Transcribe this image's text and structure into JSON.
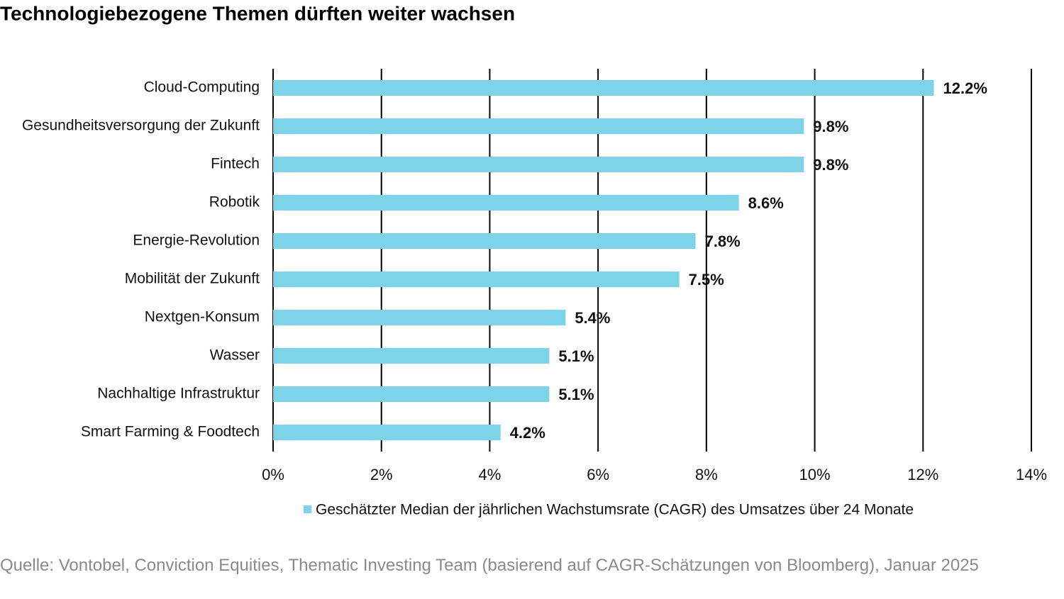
{
  "chart_data": {
    "type": "hbar",
    "title": "Technologiebezogene Themen dürften weiter wachsen",
    "categories": [
      "Cloud-Computing",
      "Gesundheitsversorgung der Zukunft",
      "Fintech",
      "Robotik",
      "Energie-Revolution",
      "Mobilität der Zukunft",
      "Nextgen-Konsum",
      "Wasser",
      "Nachhaltige Infrastruktur",
      "Smart Farming & Foodtech"
    ],
    "series": [
      {
        "name": "Geschätzter Median der jährlichen Wachstumsrate (CAGR) des Umsatzes über 24 Monate",
        "color": "#7dd3e8",
        "values": [
          12.2,
          9.8,
          9.8,
          8.6,
          7.8,
          7.5,
          5.4,
          5.1,
          5.1,
          4.2
        ],
        "value_labels": [
          "12.2%",
          "9.8%",
          "9.8%",
          "8.6%",
          "7.8%",
          "7.5%",
          "5.4%",
          "5.1%",
          "5.1%",
          "4.2%"
        ]
      }
    ],
    "xlim": [
      0,
      14
    ],
    "xticks": [
      {
        "value": 0,
        "label": "0%"
      },
      {
        "value": 2,
        "label": "2%"
      },
      {
        "value": 4,
        "label": "4%"
      },
      {
        "value": 6,
        "label": "6%"
      },
      {
        "value": 8,
        "label": "8%"
      },
      {
        "value": 10,
        "label": "10%"
      },
      {
        "value": 12,
        "label": "12%"
      },
      {
        "value": 14,
        "label": "14%"
      }
    ],
    "grid": true,
    "legend": "bottom",
    "source": "Quelle: Vontobel, Conviction Equities, Thematic Investing Team (basierend auf CAGR-Schätzungen von Bloomberg), Januar 2025"
  }
}
